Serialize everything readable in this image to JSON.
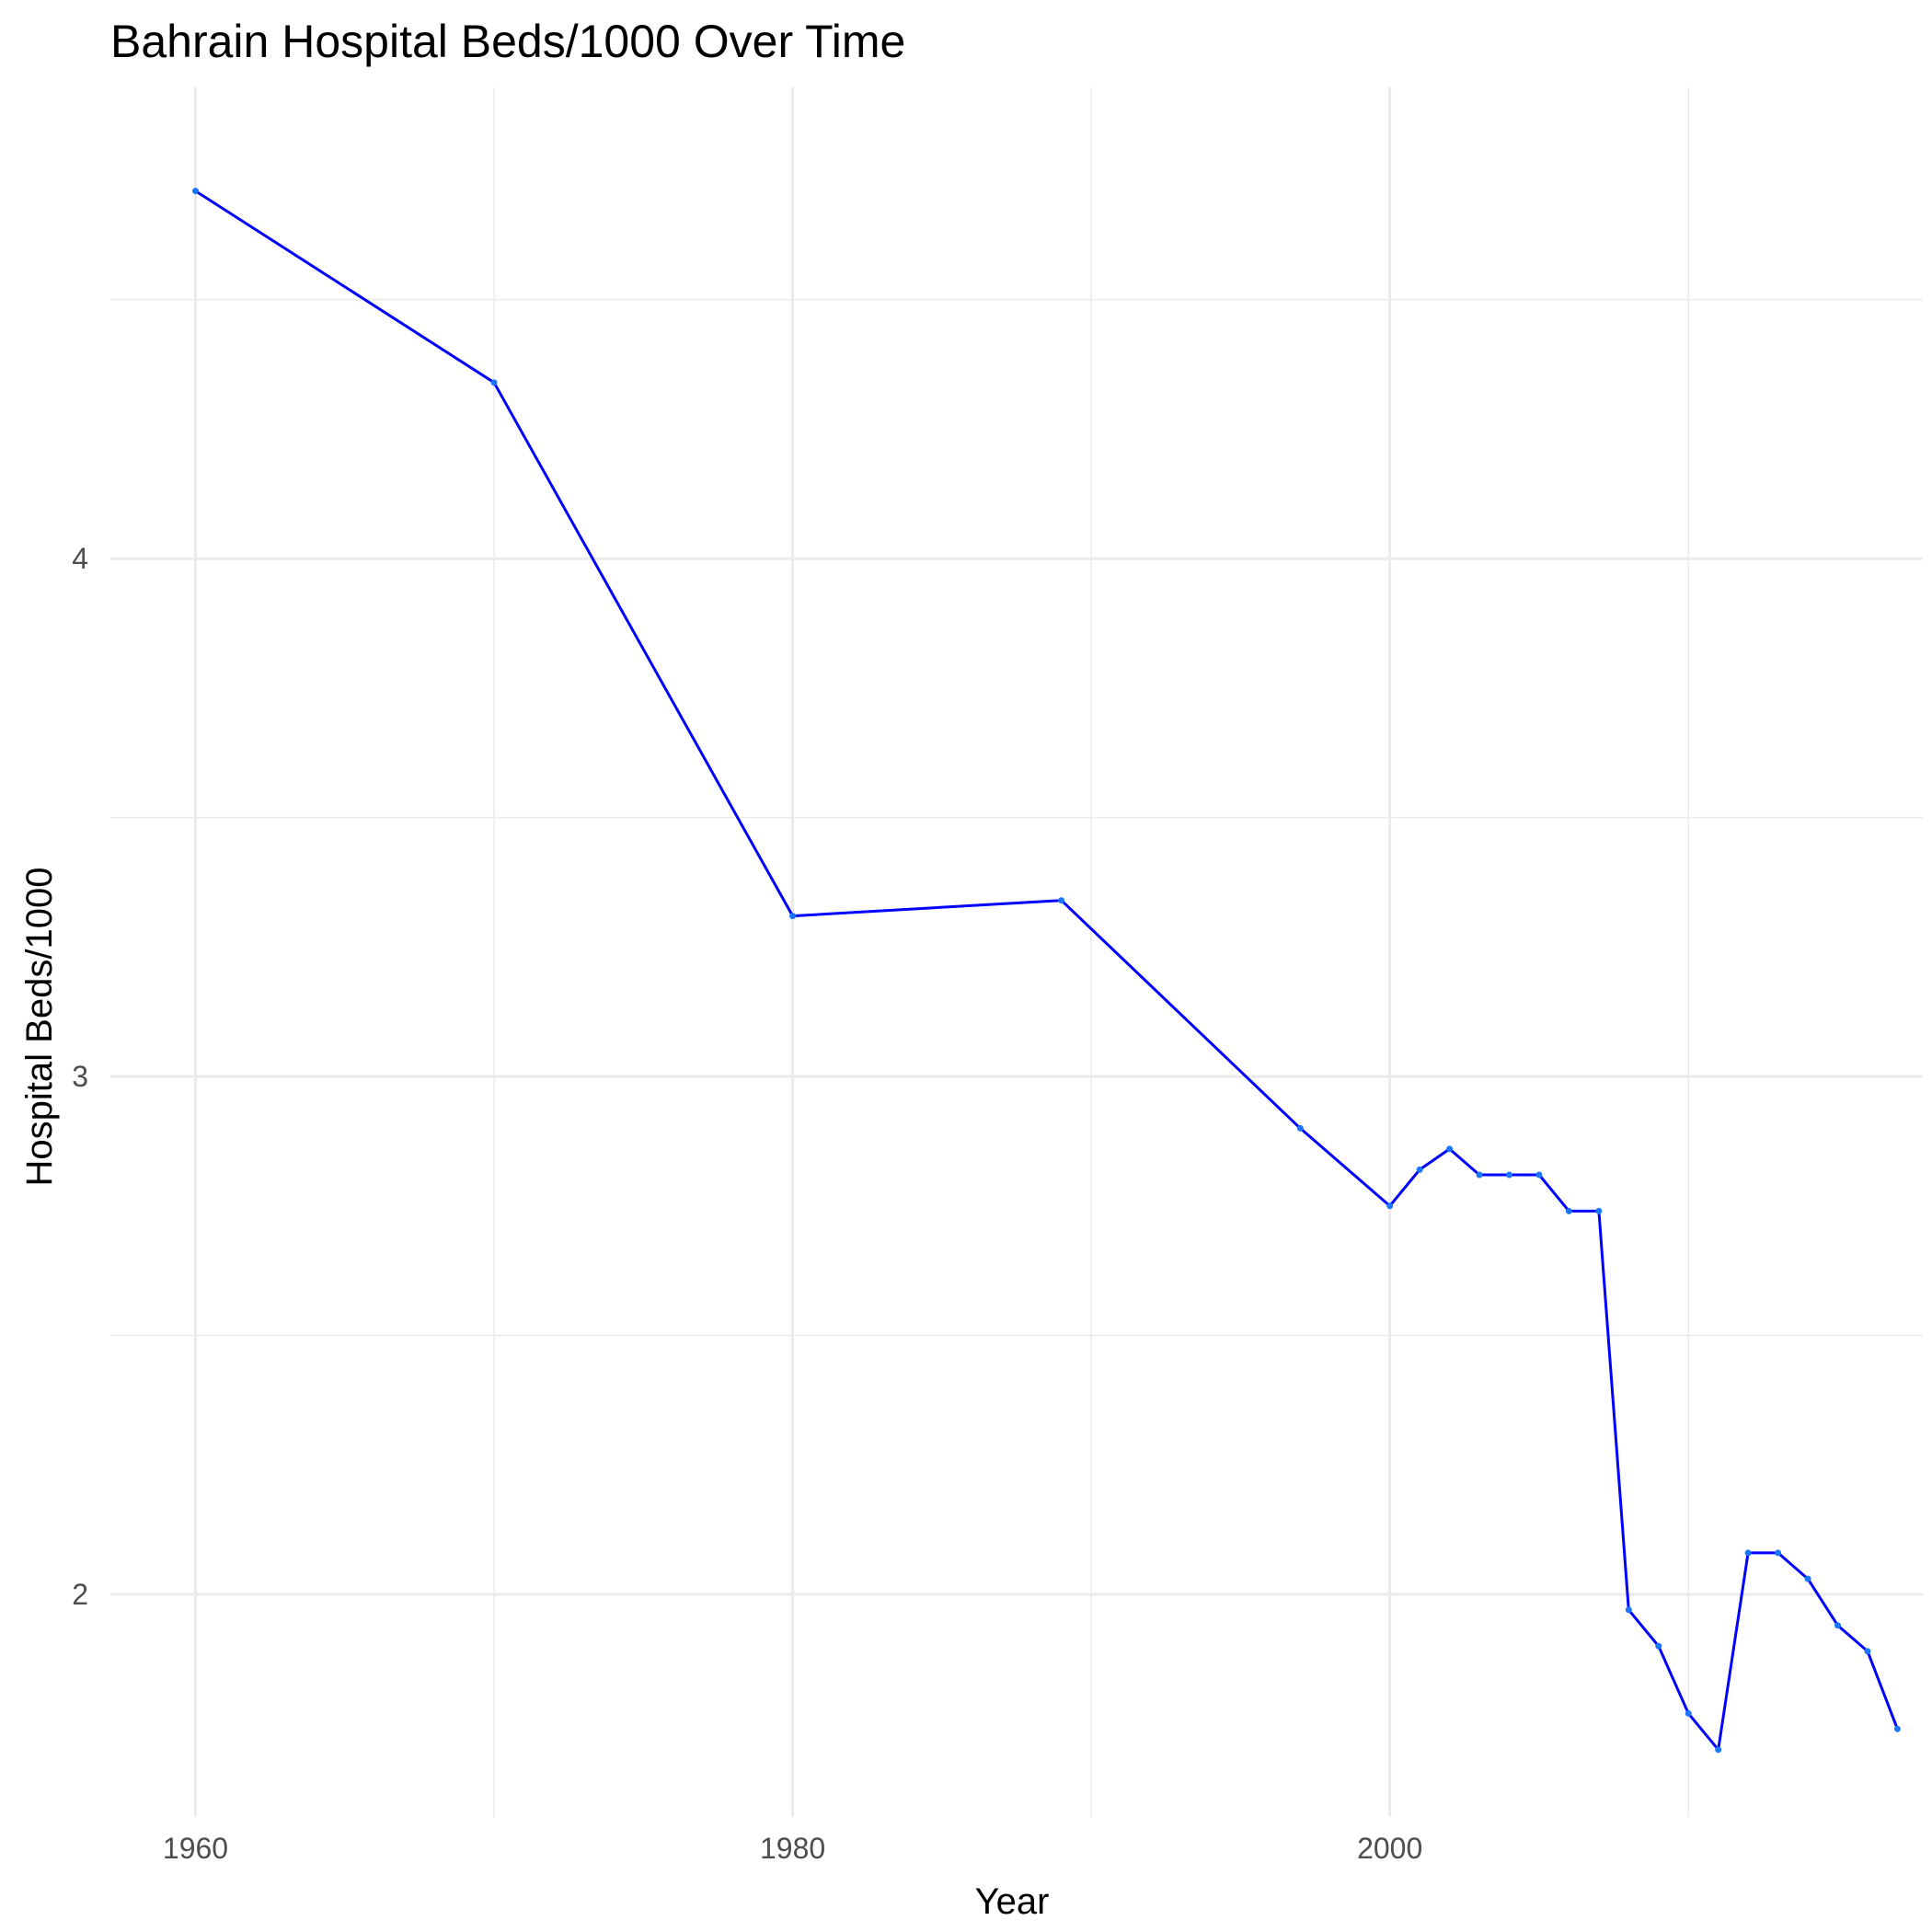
{
  "chart_data": {
    "type": "line",
    "title": "Bahrain Hospital Beds/1000 Over Time",
    "xlabel": "Year",
    "ylabel": "Hospital Beds/1000",
    "xlim": [
      1957.15,
      2017.85
    ],
    "ylim": [
      1.57,
      4.91
    ],
    "x_ticks": [
      1960,
      1980,
      2000
    ],
    "y_ticks": [
      2,
      3,
      4
    ],
    "x_tick_labels": [
      "1960",
      "1980",
      "2000"
    ],
    "y_tick_labels": [
      "2",
      "3",
      "4"
    ],
    "grid": true,
    "legend": "none",
    "line_color": "#0000ff",
    "point_color": "#1a75ff",
    "series": [
      {
        "x": [
          1960,
          1970,
          1980,
          1989,
          1997,
          2000,
          2001,
          2002,
          2003,
          2004,
          2005,
          2006,
          2007,
          2008,
          2009,
          2010,
          2011,
          2012,
          2013,
          2014,
          2015,
          2016,
          2017
        ],
        "y": [
          4.71,
          4.34,
          3.31,
          3.34,
          2.9,
          2.75,
          2.82,
          2.86,
          2.81,
          2.81,
          2.81,
          2.74,
          2.74,
          1.97,
          1.9,
          1.77,
          1.7,
          2.08,
          2.08,
          2.03,
          1.94,
          1.89,
          1.74
        ]
      }
    ]
  }
}
